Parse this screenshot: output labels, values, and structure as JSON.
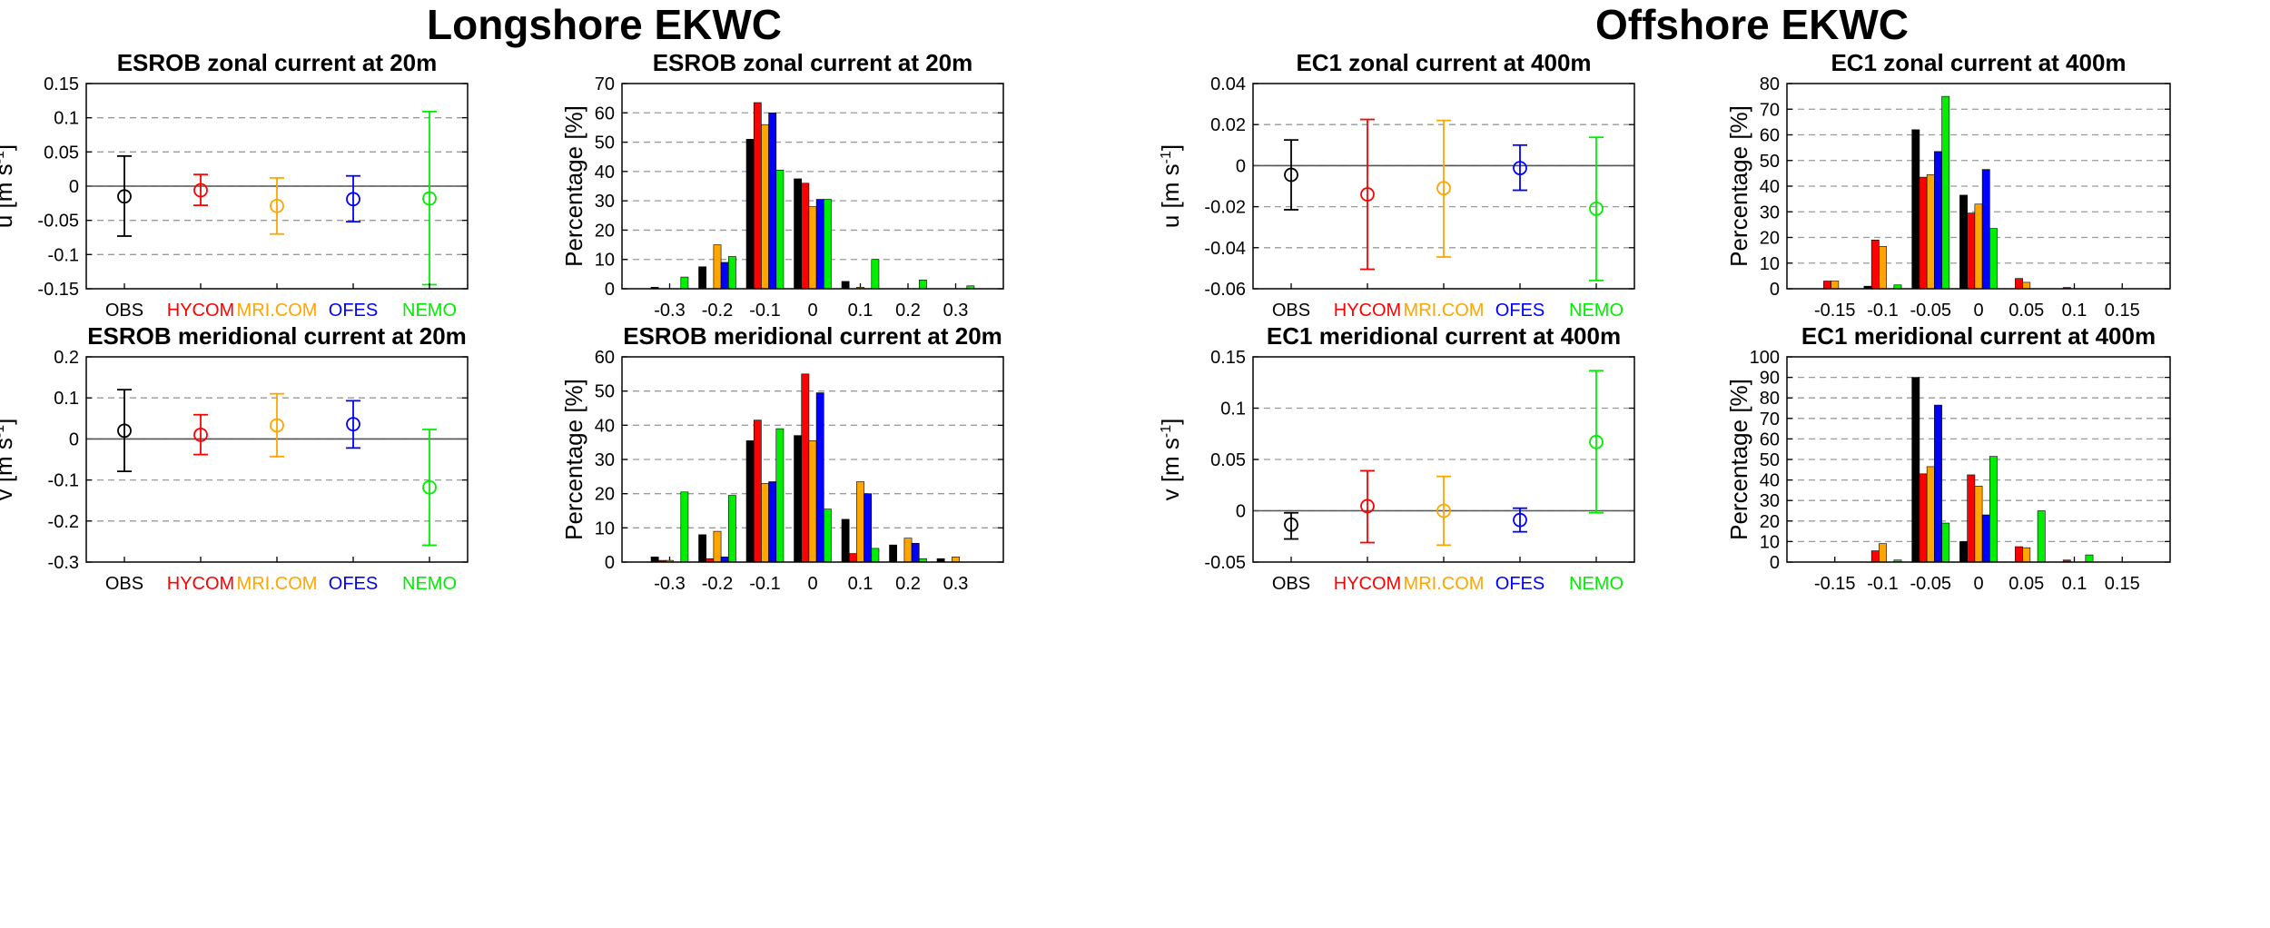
{
  "section_titles": {
    "left": "Longshore EKWC",
    "right": "Offshore EKWC"
  },
  "models": [
    "OBS",
    "HYCOM",
    "MRI.COM",
    "OFES",
    "NEMO"
  ],
  "colors": {
    "OBS": "#000000",
    "HYCOM": "#ff0000",
    "MRI.COM": "#ffa500",
    "OFES": "#0000ff",
    "NEMO": "#00ee00"
  },
  "chart_data": [
    {
      "id": "p1",
      "type": "errorbar",
      "title": "ESROB zonal current at 20m",
      "ylabel": "u [m s",
      "ylabel_sup": "-1",
      "ylabel_end": "]",
      "ylim": [
        -0.15,
        0.15
      ],
      "yticks": [
        -0.15,
        -0.1,
        -0.05,
        0,
        0.05,
        0.1,
        0.15
      ],
      "ytick_labels": [
        "-0.15",
        "-0.1",
        "-0.05",
        "0",
        "0.05",
        "0.1",
        "0.15"
      ],
      "zero_line": 0,
      "points": [
        {
          "name": "OBS",
          "mean": -0.015,
          "low": -0.073,
          "high": 0.044
        },
        {
          "name": "HYCOM",
          "mean": -0.006,
          "low": -0.028,
          "high": 0.017
        },
        {
          "name": "MRI.COM",
          "mean": -0.029,
          "low": -0.07,
          "high": 0.012
        },
        {
          "name": "OFES",
          "mean": -0.019,
          "low": -0.052,
          "high": 0.015
        },
        {
          "name": "NEMO",
          "mean": -0.018,
          "low": -0.144,
          "high": 0.109
        }
      ]
    },
    {
      "id": "p2",
      "type": "bar",
      "title": "ESROB zonal current at 20m",
      "ylabel": "Percentage [%]",
      "ylim": [
        0,
        70
      ],
      "ytick_step": 10,
      "categories": [
        "-0.3",
        "-0.2",
        "-0.1",
        "0",
        "0.1",
        "0.2",
        "0.3"
      ],
      "series": [
        {
          "name": "OBS",
          "values": [
            0.5,
            7.5,
            51,
            37.5,
            2.5,
            0,
            0
          ]
        },
        {
          "name": "HYCOM",
          "values": [
            0,
            0,
            63.5,
            36,
            0,
            0,
            0
          ]
        },
        {
          "name": "MRI.COM",
          "values": [
            0,
            15,
            56,
            28,
            0.5,
            0,
            0
          ]
        },
        {
          "name": "OFES",
          "values": [
            0,
            9,
            60,
            30.5,
            0,
            0,
            0
          ]
        },
        {
          "name": "NEMO",
          "values": [
            4,
            11,
            40.5,
            30.5,
            10,
            3,
            1
          ]
        }
      ]
    },
    {
      "id": "p3",
      "type": "errorbar",
      "title": "EC1 zonal current at 400m",
      "ylabel": "u [m s",
      "ylabel_sup": "-1",
      "ylabel_end": "]",
      "ylim": [
        -0.06,
        0.04
      ],
      "yticks": [
        -0.06,
        -0.04,
        -0.02,
        0,
        0.02,
        0.04
      ],
      "ytick_labels": [
        "-0.06",
        "-0.04",
        "-0.02",
        "0",
        "0.02",
        "0.04"
      ],
      "zero_line": 0,
      "points": [
        {
          "name": "OBS",
          "mean": -0.0045,
          "low": -0.0215,
          "high": 0.0125
        },
        {
          "name": "HYCOM",
          "mean": -0.014,
          "low": -0.0505,
          "high": 0.0225
        },
        {
          "name": "MRI.COM",
          "mean": -0.011,
          "low": -0.0445,
          "high": 0.022
        },
        {
          "name": "OFES",
          "mean": -0.0012,
          "low": -0.012,
          "high": 0.01
        },
        {
          "name": "NEMO",
          "mean": -0.021,
          "low": -0.056,
          "high": 0.0138
        }
      ]
    },
    {
      "id": "p4",
      "type": "bar",
      "title": "EC1 zonal current at 400m",
      "ylabel": "Percentage [%]",
      "ylim": [
        0,
        80
      ],
      "ytick_step": 10,
      "categories": [
        "-0.15",
        "-0.1",
        "-0.05",
        "0",
        "0.05",
        "0.1",
        "0.15"
      ],
      "series": [
        {
          "name": "OBS",
          "values": [
            0,
            1,
            62,
            36.5,
            0,
            0,
            0
          ]
        },
        {
          "name": "HYCOM",
          "values": [
            3,
            19,
            43.5,
            29.5,
            4,
            0.5,
            0
          ]
        },
        {
          "name": "MRI.COM",
          "values": [
            3,
            16.5,
            44.5,
            33,
            2.5,
            0,
            0
          ]
        },
        {
          "name": "OFES",
          "values": [
            0,
            0,
            53.5,
            46.5,
            0,
            0,
            0
          ]
        },
        {
          "name": "NEMO",
          "values": [
            0,
            1.5,
            75,
            23.5,
            0,
            0,
            0
          ]
        }
      ]
    },
    {
      "id": "p5",
      "type": "errorbar",
      "title": "ESROB meridional current at 20m",
      "ylabel": "v [m s",
      "ylabel_sup": "-1",
      "ylabel_end": "]",
      "ylim": [
        -0.3,
        0.2
      ],
      "yticks": [
        -0.3,
        -0.2,
        -0.1,
        0,
        0.1,
        0.2
      ],
      "ytick_labels": [
        "-0.3",
        "-0.2",
        "-0.1",
        "0",
        "0.1",
        "0.2"
      ],
      "zero_line": 0,
      "points": [
        {
          "name": "OBS",
          "mean": 0.02,
          "low": -0.079,
          "high": 0.12
        },
        {
          "name": "HYCOM",
          "mean": 0.01,
          "low": -0.038,
          "high": 0.059
        },
        {
          "name": "MRI.COM",
          "mean": 0.033,
          "low": -0.043,
          "high": 0.11
        },
        {
          "name": "OFES",
          "mean": 0.036,
          "low": -0.022,
          "high": 0.093
        },
        {
          "name": "NEMO",
          "mean": -0.118,
          "low": -0.259,
          "high": 0.023
        }
      ]
    },
    {
      "id": "p6",
      "type": "bar",
      "title": "ESROB meridional current at 20m",
      "ylabel": "Percentage [%]",
      "ylim": [
        0,
        60
      ],
      "ytick_step": 10,
      "categories": [
        "-0.3",
        "-0.2",
        "-0.1",
        "0",
        "0.1",
        "0.2",
        "0.3"
      ],
      "series": [
        {
          "name": "OBS",
          "values": [
            1.5,
            8,
            35.5,
            37,
            12.5,
            5,
            1
          ]
        },
        {
          "name": "HYCOM",
          "values": [
            0.5,
            1,
            41.5,
            55,
            2.5,
            0,
            0
          ]
        },
        {
          "name": "MRI.COM",
          "values": [
            0.5,
            9,
            23,
            35.5,
            23.5,
            7,
            1.5
          ]
        },
        {
          "name": "OFES",
          "values": [
            0,
            1.5,
            23.5,
            49.5,
            20,
            5.5,
            0
          ]
        },
        {
          "name": "NEMO",
          "values": [
            20.5,
            19.5,
            39,
            15.5,
            4,
            1,
            0
          ]
        }
      ]
    },
    {
      "id": "p7",
      "type": "errorbar",
      "title": "EC1 meridional current at 400m",
      "ylabel": "v [m s",
      "ylabel_sup": "-1",
      "ylabel_end": "]",
      "ylim": [
        -0.05,
        0.15
      ],
      "yticks": [
        -0.05,
        0,
        0.05,
        0.1,
        0.15
      ],
      "ytick_labels": [
        "-0.05",
        "0",
        "0.05",
        "0.1",
        "0.15"
      ],
      "zero_line": 0,
      "points": [
        {
          "name": "OBS",
          "mean": -0.0135,
          "low": -0.0275,
          "high": -0.002
        },
        {
          "name": "HYCOM",
          "mean": 0.0045,
          "low": -0.031,
          "high": 0.039
        },
        {
          "name": "MRI.COM",
          "mean": 0.0,
          "low": -0.0335,
          "high": 0.0335
        },
        {
          "name": "OFES",
          "mean": -0.009,
          "low": -0.0205,
          "high": 0.0025
        },
        {
          "name": "NEMO",
          "mean": 0.067,
          "low": -0.002,
          "high": 0.1365
        }
      ]
    },
    {
      "id": "p8",
      "type": "bar",
      "title": "EC1 meridional current at 400m",
      "ylabel": "Percentage [%]",
      "ylim": [
        0,
        100
      ],
      "ytick_step": 10,
      "categories": [
        "-0.15",
        "-0.1",
        "-0.05",
        "0",
        "0.05",
        "0.1",
        "0.15"
      ],
      "series": [
        {
          "name": "OBS",
          "values": [
            0,
            0,
            90,
            10,
            0,
            0,
            0
          ]
        },
        {
          "name": "HYCOM",
          "values": [
            0,
            5.5,
            43,
            42.5,
            7.5,
            1,
            0
          ]
        },
        {
          "name": "MRI.COM",
          "values": [
            0,
            9,
            46.5,
            37,
            7,
            0,
            0
          ]
        },
        {
          "name": "OFES",
          "values": [
            0,
            0,
            76.5,
            23,
            0,
            0,
            0
          ]
        },
        {
          "name": "NEMO",
          "values": [
            0,
            1,
            19,
            51.5,
            25,
            3.5,
            0
          ]
        }
      ]
    }
  ]
}
